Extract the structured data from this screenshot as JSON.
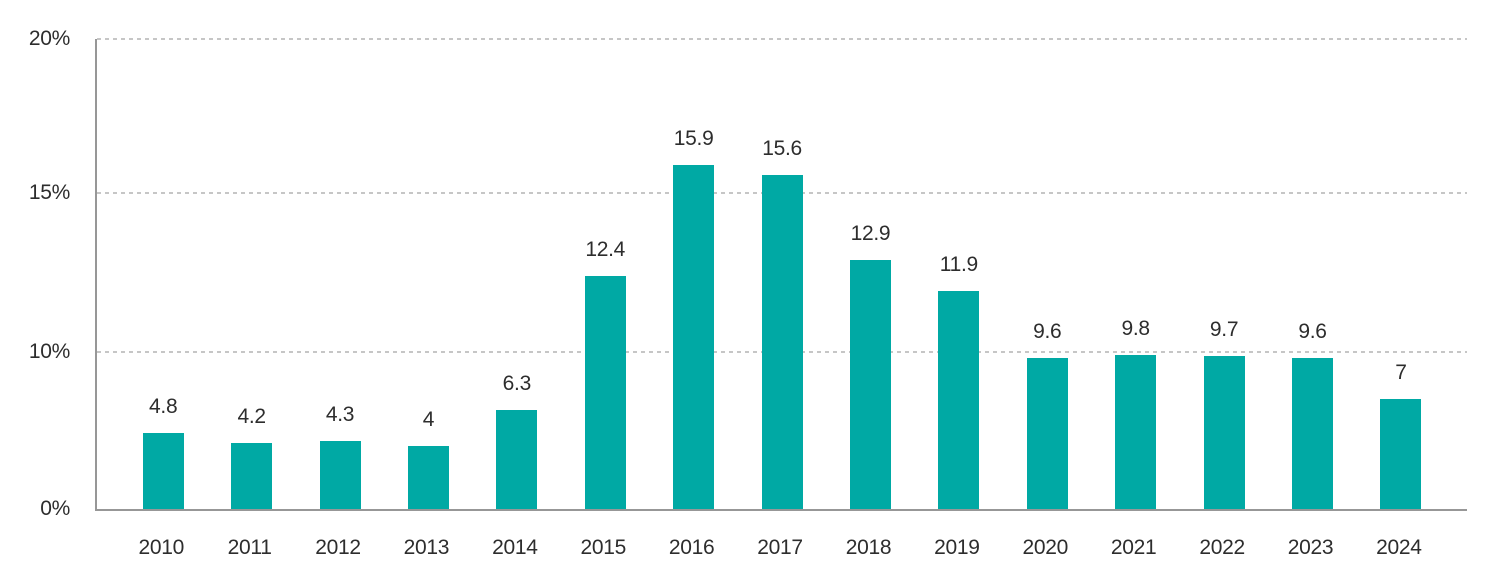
{
  "page": {
    "background": "#ffffff",
    "title": ""
  },
  "chart_data": {
    "type": "bar",
    "title": "",
    "xlabel": "",
    "ylabel": "",
    "legend": "none",
    "grid": "horizontal-dashed",
    "categories": [
      "2010",
      "2011",
      "2012",
      "2013",
      "2014",
      "2015",
      "2016",
      "2017",
      "2018",
      "2019",
      "2020",
      "2021",
      "2022",
      "2023",
      "2024"
    ],
    "values": [
      4.8,
      4.2,
      4.3,
      4,
      6.3,
      12.4,
      15.9,
      15.6,
      12.9,
      11.9,
      9.6,
      9.8,
      9.7,
      9.6,
      7
    ],
    "value_labels": [
      "4.8",
      "4.2",
      "4.3",
      "4",
      "6.3",
      "12.4",
      "15.9",
      "15.6",
      "12.9",
      "11.9",
      "9.6",
      "9.8",
      "9.7",
      "9.6",
      "7"
    ],
    "ylim": [
      0,
      20
    ],
    "y_ticks": [
      {
        "value": 20,
        "label": "20%"
      },
      {
        "value": 15,
        "label": "15%"
      },
      {
        "value": 10,
        "label": "10%"
      },
      {
        "value": 0,
        "label": "0%"
      }
    ],
    "bar_color": "#00a9a4",
    "label_color": "#2d2d2d",
    "axis_color": "#979797",
    "gridline_color": "#c6c6c6"
  }
}
